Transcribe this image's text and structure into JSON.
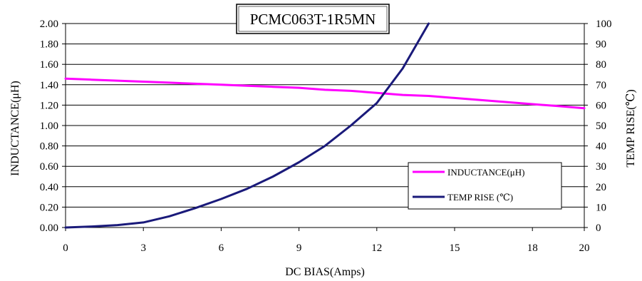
{
  "chart_data": {
    "type": "line",
    "title": "PCMC063T-1R5MN",
    "xlabel": "DC BIAS(Amps)",
    "ylabel": "INDUCTANCE(μH)",
    "y2label": "TEMP RISE(℃)",
    "xlim": [
      0,
      20
    ],
    "ylim": [
      0,
      2.0
    ],
    "y2lim": [
      0,
      100
    ],
    "x_ticks": [
      "0",
      "3",
      "6",
      "9",
      "12",
      "15",
      "18",
      "20"
    ],
    "y_ticks": [
      "0.00",
      "0.20",
      "0.40",
      "0.60",
      "0.80",
      "1.00",
      "1.20",
      "1.40",
      "1.60",
      "1.80",
      "2.00"
    ],
    "y2_ticks": [
      "0",
      "10",
      "20",
      "30",
      "40",
      "50",
      "60",
      "70",
      "80",
      "90",
      "100"
    ],
    "grid": "horizontal",
    "legend_position": "bottom-right",
    "series": [
      {
        "name": "INDUCTANCE(μH)",
        "axis": "left",
        "color": "#ff00ff",
        "x": [
          0,
          1,
          2,
          3,
          4,
          5,
          6,
          7,
          8,
          9,
          10,
          11,
          12,
          13,
          14,
          15,
          16,
          17,
          18,
          19,
          20
        ],
        "y": [
          1.46,
          1.45,
          1.44,
          1.43,
          1.42,
          1.41,
          1.4,
          1.39,
          1.38,
          1.37,
          1.35,
          1.34,
          1.32,
          1.3,
          1.29,
          1.27,
          1.25,
          1.23,
          1.21,
          1.19,
          1.17
        ]
      },
      {
        "name": "TEMP RISE (℃)",
        "axis": "right",
        "color": "#1a1a7a",
        "x": [
          0,
          1,
          2,
          3,
          4,
          5,
          6,
          7,
          8,
          9,
          10,
          11,
          12,
          13,
          14
        ],
        "y": [
          0,
          0.5,
          1.2,
          2.5,
          5.5,
          9.5,
          14,
          19,
          25,
          32,
          40,
          50,
          61,
          78,
          100
        ]
      }
    ]
  }
}
